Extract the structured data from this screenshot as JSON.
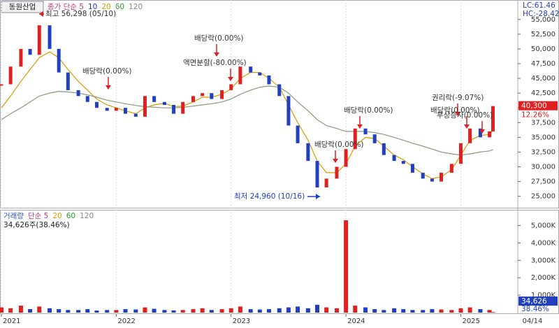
{
  "chart_data": [
    {
      "type": "candlestick",
      "title": "동원산업",
      "legend_items": [
        {
          "label": "종가 단순 5",
          "color": "#c0387f"
        },
        {
          "label": "10",
          "color": "#2233cc"
        },
        {
          "label": "20",
          "color": "#d89a00"
        },
        {
          "label": "60",
          "color": "#2a9a2a"
        },
        {
          "label": "120",
          "color": "#888888"
        }
      ],
      "lc_label": "LC:61.46",
      "hc_label": "HC:-28.42",
      "last_price_label": "40,300",
      "last_change_label": "12.26%",
      "x": [
        2021.0,
        2021.08,
        2021.17,
        2021.25,
        2021.33,
        2021.42,
        2021.5,
        2021.58,
        2021.67,
        2021.75,
        2021.83,
        2021.92,
        2022.0,
        2022.08,
        2022.17,
        2022.25,
        2022.33,
        2022.42,
        2022.5,
        2022.58,
        2022.67,
        2022.75,
        2022.83,
        2022.92,
        2023.0,
        2023.08,
        2023.17,
        2023.25,
        2023.33,
        2023.42,
        2023.5,
        2023.58,
        2023.67,
        2023.75,
        2023.83,
        2023.92,
        2024.0,
        2024.08,
        2024.17,
        2024.25,
        2024.33,
        2024.42,
        2024.5,
        2024.58,
        2024.67,
        2024.75,
        2024.83,
        2024.92,
        2025.0,
        2025.08,
        2025.17,
        2025.25,
        2025.28
      ],
      "xlim": [
        2021,
        2025.49
      ],
      "xticks": [
        2021,
        2022,
        2023,
        2024,
        2025
      ],
      "x_end_label": "04/14",
      "ylim": [
        23300,
        57700
      ],
      "yticks": [
        {
          "value": 25000,
          "label": "25,000"
        },
        {
          "value": 27500,
          "label": "27,500"
        },
        {
          "value": 30000,
          "label": "30,000"
        },
        {
          "value": 32500,
          "label": "32,500"
        },
        {
          "value": 35000,
          "label": "35,000"
        },
        {
          "value": 37500,
          "label": "37,500"
        },
        {
          "value": 40000,
          "label": "40,000"
        },
        {
          "value": 42500,
          "label": "42,500"
        },
        {
          "value": 45000,
          "label": "45,000"
        },
        {
          "value": 47500,
          "label": "47,500"
        },
        {
          "value": 50000,
          "label": "50,000"
        },
        {
          "value": 52500,
          "label": "52,500"
        },
        {
          "value": 55000,
          "label": "55,000"
        }
      ],
      "up_color": "#e02020",
      "down_color": "#2040c0",
      "close": [
        44000,
        47000,
        50000,
        49000,
        54000,
        50000,
        46000,
        43000,
        42000,
        41000,
        40000,
        39500,
        40000,
        39000,
        38500,
        42000,
        41000,
        40500,
        39000,
        41000,
        42000,
        42500,
        41500,
        43000,
        44000,
        47000,
        46000,
        45500,
        44000,
        42000,
        37000,
        34000,
        31000,
        26500,
        28000,
        30000,
        33000,
        36500,
        35500,
        34000,
        32000,
        31000,
        30500,
        29000,
        28000,
        27500,
        29000,
        30500,
        34000,
        36500,
        35000,
        36000,
        40300
      ],
      "series": [
        {
          "color": "#d89a00",
          "values": [
            40000,
            42000,
            44500,
            46500,
            48500,
            49500,
            48500,
            46500,
            44500,
            43000,
            41500,
            40500,
            40000,
            39500,
            39000,
            40000,
            40500,
            40800,
            40200,
            40300,
            41000,
            41800,
            41800,
            42300,
            43200,
            45000,
            46000,
            46000,
            45000,
            43500,
            40500,
            37500,
            34500,
            31000,
            29000,
            29000,
            30500,
            33500,
            35000,
            34800,
            33500,
            32000,
            31200,
            30000,
            28800,
            28000,
            28300,
            29500,
            32000,
            34500,
            35300,
            35500,
            36200
          ]
        },
        {
          "color": "#889a7a",
          "values": [
            38000,
            39000,
            40000,
            41000,
            42000,
            42500,
            42800,
            42700,
            42500,
            42200,
            41800,
            41300,
            41000,
            40700,
            40400,
            40200,
            40100,
            40000,
            40000,
            40100,
            40300,
            40500,
            40700,
            41000,
            41500,
            42300,
            43000,
            43500,
            43700,
            43500,
            42500,
            41000,
            39500,
            38000,
            37000,
            36500,
            36000,
            36000,
            36000,
            35800,
            35500,
            35000,
            34500,
            34000,
            33500,
            33000,
            32500,
            32200,
            32000,
            32200,
            32500,
            32700,
            32900
          ]
        }
      ],
      "annotations": [
        "최고 56,298 (05/10)",
        "배당락(0.00%)",
        "배당락(0.00%)",
        "액면분할(-80.00%)",
        "배당락(0.00%)",
        "배당락(0.00%)",
        "최저 24,960 (10/16)",
        "권리락(-9.07%)",
        "배당락(0.00%)",
        "무상증자(0.00%)"
      ]
    },
    {
      "type": "bar",
      "legend_items": [
        {
          "label": "거래량",
          "color": "#2a4fd0"
        },
        {
          "label": "단순 5",
          "color": "#c0387f"
        },
        {
          "label": "20",
          "color": "#d89a00"
        },
        {
          "label": "60",
          "color": "#2a9a2a"
        },
        {
          "label": "120",
          "color": "#888888"
        }
      ],
      "subtitle": "34,626주(38.46%)",
      "last_volume_label": "34,626",
      "last_ratio_label": "38.46%",
      "x": [
        2021.0,
        2021.08,
        2021.17,
        2021.25,
        2021.33,
        2021.42,
        2021.5,
        2021.58,
        2021.67,
        2021.75,
        2021.83,
        2021.92,
        2022.0,
        2022.08,
        2022.17,
        2022.25,
        2022.33,
        2022.42,
        2022.5,
        2022.58,
        2022.67,
        2022.75,
        2022.83,
        2022.92,
        2023.0,
        2023.08,
        2023.17,
        2023.25,
        2023.33,
        2023.42,
        2023.5,
        2023.58,
        2023.67,
        2023.75,
        2023.83,
        2023.92,
        2024.0,
        2024.08,
        2024.17,
        2024.25,
        2024.33,
        2024.42,
        2024.5,
        2024.58,
        2024.67,
        2024.75,
        2024.83,
        2024.92,
        2025.0,
        2025.08,
        2025.17,
        2025.25,
        2025.28
      ],
      "xlim": [
        2021,
        2025.49
      ],
      "values": [
        300000,
        250000,
        400000,
        200000,
        350000,
        250000,
        200000,
        150000,
        150000,
        200000,
        120000,
        150000,
        150000,
        200000,
        180000,
        300000,
        220000,
        150000,
        130000,
        150000,
        200000,
        250000,
        150000,
        200000,
        250000,
        350000,
        200000,
        180000,
        200000,
        250000,
        300000,
        350000,
        250000,
        450000,
        300000,
        250000,
        5300000,
        400000,
        300000,
        200000,
        150000,
        250000,
        200000,
        150000,
        150000,
        200000,
        180000,
        150000,
        250000,
        300000,
        200000,
        150000,
        34626
      ],
      "ylim": [
        0,
        5500000
      ],
      "yticks": [
        {
          "value": 1000000,
          "label": "1,000K"
        },
        {
          "value": 2000000,
          "label": "2,000K"
        },
        {
          "value": 3000000,
          "label": "3,000K"
        },
        {
          "value": 4000000,
          "label": "4,000K"
        },
        {
          "value": 5000000,
          "label": "5,000K"
        }
      ],
      "up_color": "#e02020",
      "down_color": "#2040c0"
    }
  ]
}
